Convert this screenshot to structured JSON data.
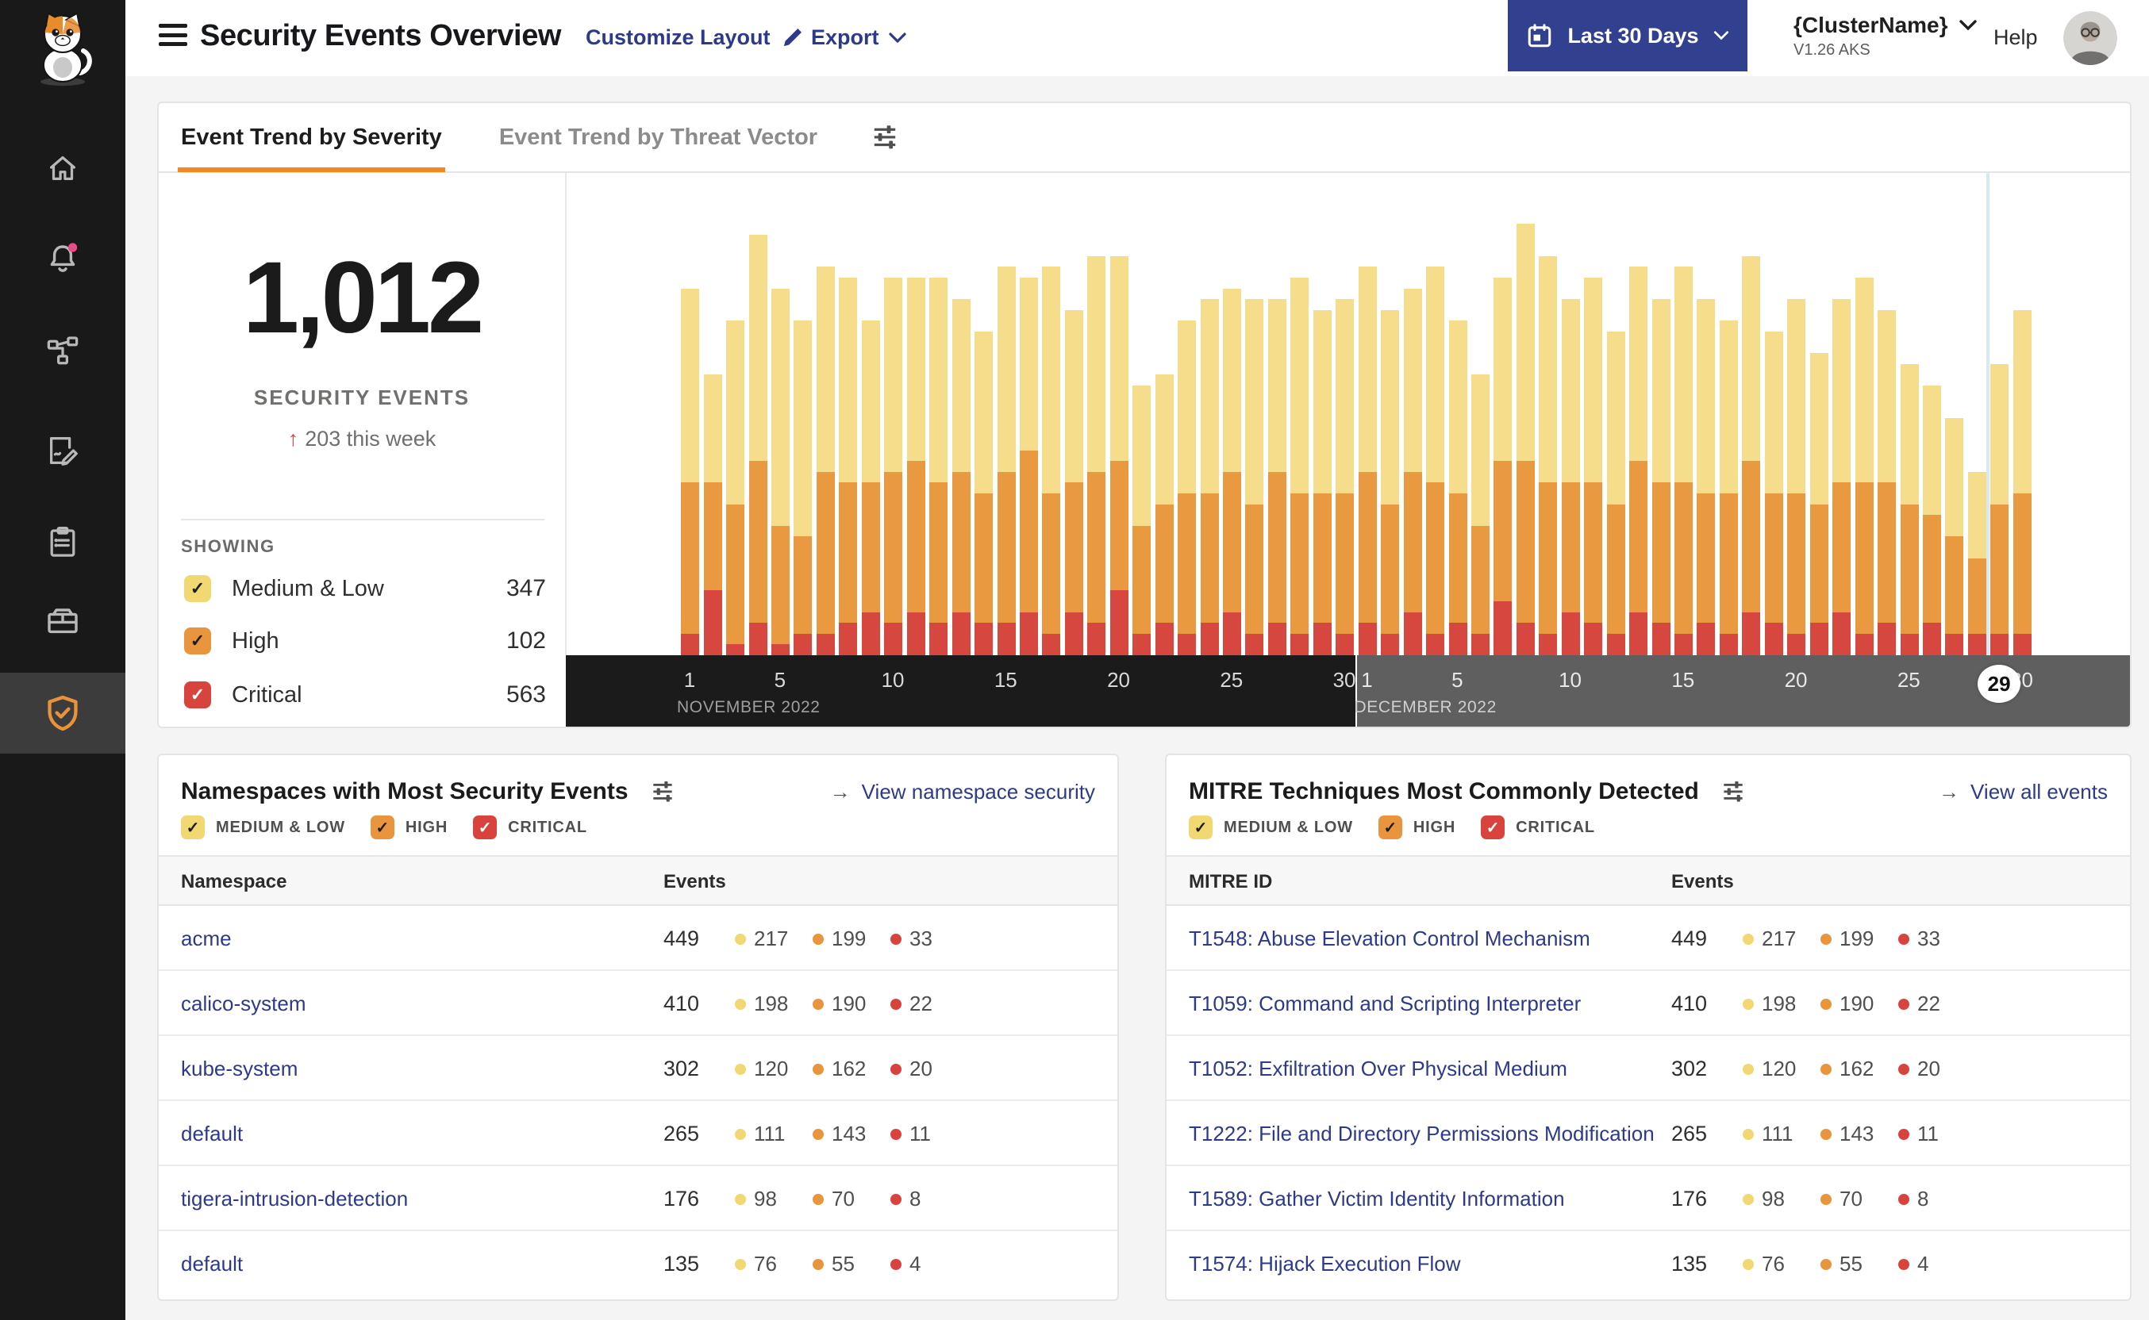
{
  "icons": {
    "arrow_right": "→",
    "up_arrow": "↑",
    "check": "✓"
  },
  "colors": {
    "accent_orange": "#F18A21",
    "link_indigo": "#2D3A8A",
    "button_indigo": "#31408F",
    "notification_pink": "#EA4C89",
    "axis_nov_bg": "#1B1B1B",
    "axis_dec_bg": "#5F5F5F",
    "marker_blue": "#D6EAF4",
    "severity": {
      "medium_low": "#F6DD8B",
      "high": "#E9993F",
      "critical": "#D5473F"
    },
    "checkbox": {
      "medium_low": "#F2D873",
      "high": "#E9953D",
      "critical": "#D8443D"
    }
  },
  "sidebar": {
    "items": [
      "home-icon",
      "alerts-bell-icon",
      "service-graph-icon",
      "policy-edit-icon",
      "compliance-clipboard-icon",
      "workloads-box-icon"
    ],
    "active_item": "security-shield-icon"
  },
  "header": {
    "title": "Security Events Overview",
    "customize_label": "Customize Layout",
    "export_label": "Export",
    "date_range_label": "Last 30 Days",
    "cluster_name": "{ClusterName}",
    "cluster_version": "V1.26 AKS",
    "help_label": "Help"
  },
  "tabs": {
    "severity_label": "Event Trend by Severity",
    "threat_label": "Event Trend by Threat Vector"
  },
  "summary": {
    "total": "1,012",
    "total_label": "SECURITY EVENTS",
    "delta_label": "203 this week",
    "showing_label": "SHOWING",
    "filters": [
      {
        "label": "Medium & Low",
        "count": "347",
        "severity": "medium_low",
        "checked": true
      },
      {
        "label": "High",
        "count": "102",
        "severity": "high",
        "checked": true
      },
      {
        "label": "Critical",
        "count": "563",
        "severity": "critical",
        "checked": true
      }
    ]
  },
  "chart_data": {
    "type": "bar",
    "stacked": true,
    "title": "Event Trend by Severity",
    "grid": false,
    "y_axis": "hidden",
    "months": [
      {
        "label": "NOVEMBER 2022",
        "days": 30,
        "ticks": [
          1,
          5,
          10,
          15,
          20,
          25,
          30
        ]
      },
      {
        "label": "DECEMBER 2022",
        "days": 30,
        "ticks": [
          1,
          5,
          10,
          15,
          20,
          25,
          30
        ]
      }
    ],
    "current_day_marker": {
      "month_index": 1,
      "day": 29
    },
    "series": [
      {
        "name": "Critical",
        "color": "#D5473F",
        "values": [
          2,
          6,
          1,
          3,
          1,
          2,
          2,
          3,
          4,
          3,
          4,
          3,
          4,
          3,
          3,
          4,
          2,
          4,
          3,
          6,
          2,
          3,
          2,
          3,
          4,
          2,
          3,
          2,
          3,
          2,
          3,
          2,
          4,
          2,
          3,
          2,
          5,
          3,
          2,
          4,
          3,
          2,
          4,
          3,
          2,
          3,
          2,
          4,
          3,
          2,
          3,
          4,
          2,
          3,
          2,
          3,
          2,
          2,
          2,
          2
        ]
      },
      {
        "name": "High",
        "color": "#E9993F",
        "values": [
          14,
          10,
          13,
          15,
          11,
          9,
          15,
          13,
          12,
          14,
          14,
          13,
          13,
          12,
          14,
          15,
          13,
          12,
          14,
          12,
          10,
          11,
          13,
          12,
          13,
          12,
          14,
          13,
          12,
          13,
          14,
          12,
          13,
          14,
          12,
          10,
          13,
          15,
          14,
          12,
          13,
          12,
          14,
          13,
          14,
          12,
          13,
          14,
          12,
          13,
          11,
          12,
          14,
          13,
          12,
          10,
          9,
          7,
          12,
          13
        ]
      },
      {
        "name": "Medium & Low",
        "color": "#F6DD8B",
        "values": [
          18,
          10,
          17,
          21,
          22,
          20,
          19,
          19,
          15,
          18,
          17,
          19,
          16,
          15,
          19,
          16,
          21,
          16,
          20,
          19,
          13,
          12,
          16,
          18,
          17,
          19,
          16,
          20,
          17,
          18,
          19,
          18,
          17,
          20,
          16,
          14,
          17,
          22,
          21,
          17,
          19,
          16,
          18,
          17,
          20,
          18,
          16,
          19,
          15,
          18,
          14,
          17,
          19,
          16,
          13,
          12,
          11,
          8,
          13,
          17
        ]
      }
    ]
  },
  "cards": {
    "namespaces": {
      "title": "Namespaces with Most Security Events",
      "link_label": "View namespace security",
      "filter_labels": [
        "MEDIUM & LOW",
        "HIGH",
        "CRITICAL"
      ],
      "columns": [
        "Namespace",
        "Events"
      ],
      "rows": [
        {
          "name": "acme",
          "total": "449",
          "medium": "217",
          "high": "199",
          "critical": "33"
        },
        {
          "name": "calico-system",
          "total": "410",
          "medium": "198",
          "high": "190",
          "critical": "22"
        },
        {
          "name": "kube-system",
          "total": "302",
          "medium": "120",
          "high": "162",
          "critical": "20"
        },
        {
          "name": "default",
          "total": "265",
          "medium": "111",
          "high": "143",
          "critical": "11"
        },
        {
          "name": "tigera-intrusion-detection",
          "total": "176",
          "medium": "98",
          "high": "70",
          "critical": "8"
        },
        {
          "name": "default",
          "total": "135",
          "medium": "76",
          "high": "55",
          "critical": "4"
        }
      ]
    },
    "mitre": {
      "title": "MITRE Techniques Most Commonly Detected",
      "link_label": "View all events",
      "filter_labels": [
        "MEDIUM & LOW",
        "HIGH",
        "CRITICAL"
      ],
      "columns": [
        "MITRE ID",
        "Events"
      ],
      "rows": [
        {
          "name": "T1548: Abuse Elevation Control Mechanism",
          "total": "449",
          "medium": "217",
          "high": "199",
          "critical": "33"
        },
        {
          "name": "T1059: Command and Scripting Interpreter",
          "total": "410",
          "medium": "198",
          "high": "190",
          "critical": "22"
        },
        {
          "name": "T1052: Exfiltration Over Physical Medium",
          "total": "302",
          "medium": "120",
          "high": "162",
          "critical": "20"
        },
        {
          "name": "T1222: File and Directory Permissions Modification",
          "total": "265",
          "medium": "111",
          "high": "143",
          "critical": "11"
        },
        {
          "name": "T1589: Gather Victim Identity Information",
          "total": "176",
          "medium": "98",
          "high": "70",
          "critical": "8"
        },
        {
          "name": "T1574: Hijack Execution Flow",
          "total": "135",
          "medium": "76",
          "high": "55",
          "critical": "4"
        }
      ]
    }
  }
}
